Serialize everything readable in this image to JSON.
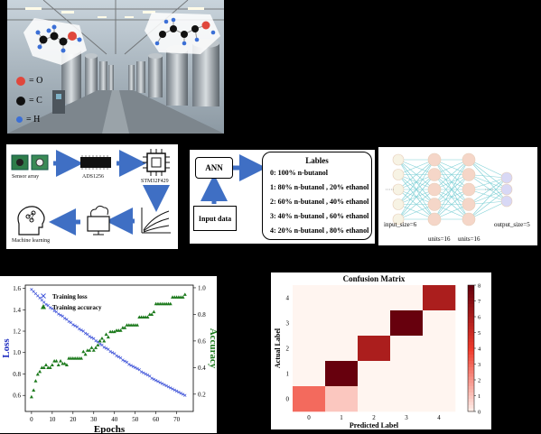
{
  "molecule_legend": [
    {
      "symbol": "= O",
      "color": "#e0473c"
    },
    {
      "symbol": "= C",
      "color": "#111111"
    },
    {
      "symbol": "= H",
      "color": "#3b6fd6"
    }
  ],
  "pipeline": {
    "sensor_label": "Sensor array",
    "adc_label": "ADS1256",
    "mcu_label": "STM32F429",
    "ml_label": "Machine learning"
  },
  "ann_diagram": {
    "ann_label": "ANN",
    "input_label": "Input data",
    "labels_title": "Lables",
    "labels": [
      "0: 100% n-butanol",
      "1: 80% n-butanol , 20% ethanol",
      "2: 60% n-butanol , 40% ethanol",
      "3: 40% n-butanol , 60% ethanol",
      "4: 20% n-butanol , 80% ethanol"
    ]
  },
  "network": {
    "input_size": "input_size=6",
    "units1": "units=16",
    "units2": "units=16",
    "output_size": "output_size=5"
  },
  "chart_data": [
    {
      "type": "scatter",
      "xlabel": "Epochs",
      "ylabel_left": "Loss",
      "ylabel_right": "Accuracy",
      "xlim": [
        -3,
        78
      ],
      "ylim_left": [
        0.45,
        1.63
      ],
      "ylim_right": [
        0.07,
        1.02
      ],
      "xticks": [
        0,
        10,
        20,
        30,
        40,
        50,
        60,
        70
      ],
      "yticks_left": [
        "0.6",
        "0.8",
        "1.0",
        "1.2",
        "1.4",
        "1.6"
      ],
      "yticks_right": [
        "0.2",
        "0.4",
        "0.6",
        "0.8",
        "1.0"
      ],
      "legend_placement": "top-left",
      "series": [
        {
          "name": "Training loss",
          "axis": "left",
          "marker": "x",
          "color": "#3b50d8",
          "x": [
            0,
            1,
            2,
            3,
            4,
            5,
            6,
            7,
            8,
            9,
            10,
            11,
            12,
            13,
            14,
            15,
            16,
            17,
            18,
            19,
            20,
            21,
            22,
            23,
            24,
            25,
            26,
            27,
            28,
            29,
            30,
            31,
            32,
            33,
            34,
            35,
            36,
            37,
            38,
            39,
            40,
            41,
            42,
            43,
            44,
            45,
            46,
            47,
            48,
            49,
            50,
            51,
            52,
            53,
            54,
            55,
            56,
            57,
            58,
            59,
            60,
            61,
            62,
            63,
            64,
            65,
            66,
            67,
            68,
            69,
            70,
            71,
            72,
            73,
            74
          ],
          "y": [
            1.59,
            1.57,
            1.55,
            1.53,
            1.51,
            1.49,
            1.47,
            1.45,
            1.44,
            1.42,
            1.41,
            1.39,
            1.38,
            1.36,
            1.35,
            1.34,
            1.32,
            1.31,
            1.29,
            1.28,
            1.26,
            1.25,
            1.24,
            1.22,
            1.21,
            1.2,
            1.18,
            1.17,
            1.15,
            1.14,
            1.13,
            1.11,
            1.1,
            1.08,
            1.07,
            1.05,
            1.04,
            1.03,
            1.01,
            1.0,
            0.99,
            0.97,
            0.96,
            0.95,
            0.93,
            0.92,
            0.91,
            0.89,
            0.88,
            0.87,
            0.86,
            0.85,
            0.84,
            0.82,
            0.81,
            0.8,
            0.79,
            0.78,
            0.76,
            0.75,
            0.74,
            0.73,
            0.72,
            0.71,
            0.7,
            0.69,
            0.68,
            0.67,
            0.66,
            0.65,
            0.64,
            0.63,
            0.62,
            0.61,
            0.6
          ]
        },
        {
          "name": "Training accuracy",
          "axis": "right",
          "marker": "triangle",
          "color": "#1d7a1d",
          "x": [
            0,
            1,
            2,
            3,
            4,
            5,
            6,
            7,
            8,
            9,
            10,
            11,
            12,
            13,
            14,
            15,
            16,
            17,
            18,
            19,
            20,
            21,
            22,
            23,
            24,
            25,
            26,
            27,
            28,
            29,
            30,
            31,
            32,
            33,
            34,
            35,
            36,
            37,
            38,
            39,
            40,
            41,
            42,
            43,
            44,
            45,
            46,
            47,
            48,
            49,
            50,
            51,
            52,
            53,
            54,
            55,
            56,
            57,
            58,
            59,
            60,
            61,
            62,
            63,
            64,
            65,
            66,
            67,
            68,
            69,
            70,
            71,
            72,
            73,
            74
          ],
          "y": [
            0.18,
            0.23,
            0.3,
            0.35,
            0.37,
            0.4,
            0.4,
            0.42,
            0.4,
            0.4,
            0.42,
            0.45,
            0.45,
            0.42,
            0.45,
            0.43,
            0.43,
            0.42,
            0.47,
            0.47,
            0.47,
            0.47,
            0.47,
            0.47,
            0.47,
            0.52,
            0.5,
            0.53,
            0.53,
            0.55,
            0.53,
            0.55,
            0.57,
            0.6,
            0.62,
            0.6,
            0.65,
            0.63,
            0.67,
            0.67,
            0.67,
            0.68,
            0.68,
            0.68,
            0.7,
            0.7,
            0.72,
            0.72,
            0.72,
            0.72,
            0.72,
            0.72,
            0.78,
            0.78,
            0.78,
            0.78,
            0.78,
            0.8,
            0.8,
            0.82,
            0.88,
            0.88,
            0.88,
            0.88,
            0.88,
            0.88,
            0.88,
            0.88,
            0.93,
            0.93,
            0.93,
            0.93,
            0.93,
            0.93,
            0.95
          ]
        }
      ]
    },
    {
      "type": "heatmap",
      "title": "Confusion Matrix",
      "xlabel": "Predicted Label",
      "ylabel": "Actual Label",
      "x_ticks": [
        "0",
        "1",
        "2",
        "3",
        "4"
      ],
      "y_ticks": [
        "4",
        "3",
        "2",
        "1",
        "0"
      ],
      "matrix": [
        [
          0,
          0,
          0,
          0,
          6
        ],
        [
          0,
          0,
          0,
          8,
          0
        ],
        [
          0,
          0,
          6,
          0,
          0
        ],
        [
          0,
          8,
          0,
          0,
          0
        ],
        [
          3,
          1,
          0,
          0,
          0
        ]
      ],
      "matrix_rows_top_to_bottom": [
        "4",
        "3",
        "2",
        "1",
        "0"
      ],
      "colorbar_ticks": [
        "0",
        "1",
        "2",
        "3",
        "4",
        "5",
        "6",
        "7",
        "8"
      ],
      "vmin": 0,
      "vmax": 8
    }
  ]
}
